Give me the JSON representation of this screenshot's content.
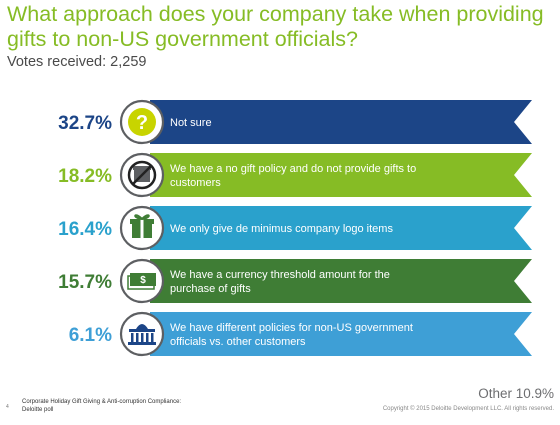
{
  "title": "What approach does your company take when providing gifts to non-US government officials?",
  "subtitle": "Votes received: 2,259",
  "colors": {
    "title_green": "#86bc25",
    "navy": "#1c4587",
    "green": "#86bc25",
    "teal": "#2aa1cc",
    "dark_green": "#3f7d35",
    "light_blue": "#3e9fd6",
    "icon_gray": "#5d5f62"
  },
  "chart_data": {
    "type": "bar",
    "title": "What approach does your company take when providing gifts to non-US government officials?",
    "categories": [
      "Not sure",
      "We have a no gift policy and do not provide gifts to customers",
      "We only give de minimus company logo items",
      "We have a currency threshold amount for the purchase of gifts",
      "We have different policies for non-US government officials vs. other customers"
    ],
    "rows": [
      {
        "percent_label": "32.7%",
        "value": 32.7,
        "line1": "Not sure",
        "line2": "",
        "icon": "question-icon",
        "color": "#1c4587",
        "pct_color": "#1c4587"
      },
      {
        "percent_label": "18.2%",
        "value": 18.2,
        "line1": "We have a no gift policy and do not provide gifts to",
        "line2": "customers",
        "icon": "no-gift-icon",
        "color": "#86bc25",
        "pct_color": "#86bc25"
      },
      {
        "percent_label": "16.4%",
        "value": 16.4,
        "line1": "We only give de minimus company logo items",
        "line2": "",
        "icon": "gift-icon",
        "color": "#2aa1cc",
        "pct_color": "#2aa1cc"
      },
      {
        "percent_label": "15.7%",
        "value": 15.7,
        "line1": "We have a currency threshold amount for the",
        "line2": "purchase of gifts",
        "icon": "money-icon",
        "color": "#3f7d35",
        "pct_color": "#3f7d35"
      },
      {
        "percent_label": "6.1%",
        "value": 6.1,
        "line1": "We have different policies for non-US government",
        "line2": "officials vs. other customers",
        "icon": "government-building-icon",
        "color": "#3e9fd6",
        "pct_color": "#3e9fd6"
      }
    ],
    "other": {
      "label": "Other 10.9%",
      "value": 10.9
    }
  },
  "footer": {
    "page_number": "4",
    "source_line1": "Corporate Holiday Gift Giving & Anti-corruption Compliance:",
    "source_line2": "Deloitte poll",
    "copyright": "Copyright © 2015 Deloitte Development LLC. All rights reserved."
  }
}
